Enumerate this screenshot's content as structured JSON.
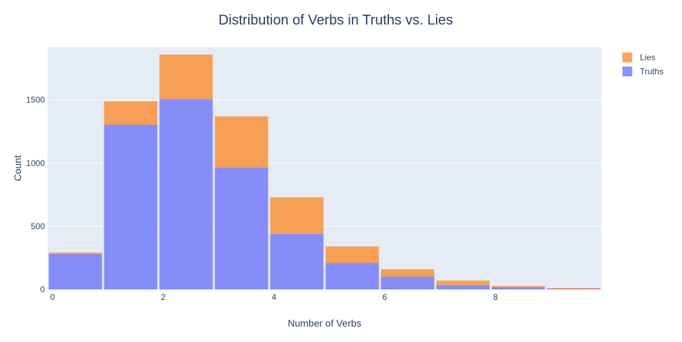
{
  "chart_data": {
    "type": "bar",
    "barmode": "stack",
    "title": "Distribution of Verbs in Truths vs. Lies",
    "xlabel": "Number of Verbs",
    "ylabel": "Count",
    "bins": [
      [
        0,
        1
      ],
      [
        1,
        2
      ],
      [
        2,
        3
      ],
      [
        3,
        4
      ],
      [
        4,
        5
      ],
      [
        5,
        6
      ],
      [
        6,
        7
      ],
      [
        7,
        8
      ],
      [
        8,
        9
      ],
      [
        9,
        10
      ]
    ],
    "series": [
      {
        "name": "Truths",
        "color": "#636efa",
        "opacity": 0.75,
        "values": [
          280,
          1305,
          1508,
          965,
          440,
          210,
          102,
          35,
          17,
          6
        ]
      },
      {
        "name": "Lies",
        "color": "#ff7f0e",
        "opacity": 0.7,
        "values": [
          12,
          185,
          352,
          405,
          290,
          130,
          58,
          35,
          10,
          5
        ]
      }
    ],
    "xlim": [
      0,
      10
    ],
    "ylim": [
      0,
      1920
    ],
    "xticks": [
      0,
      2,
      4,
      6,
      8
    ],
    "yticks": [
      0,
      500,
      1000,
      1500
    ],
    "grid": true,
    "legend_position": "top-right",
    "plot_bgcolor": "#e5ecf6"
  }
}
